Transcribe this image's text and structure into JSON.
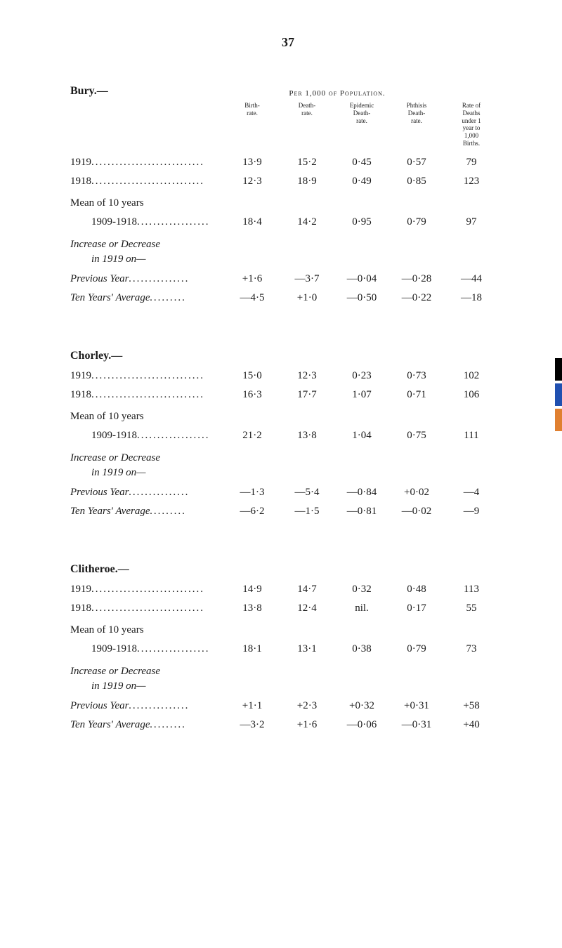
{
  "page_number": "37",
  "per_population_caption": "Per 1,000 of Population.",
  "column_headers": {
    "birth_rate": "Birth-\nrate.",
    "death_rate": "Death-\nrate.",
    "epidemic": "Epidemic\nDeath-\nrate.",
    "phthisis": "Phthisis\nDeath-\nrate.",
    "deaths_under1": "Rate of\nDeaths\nunder 1\nyear to\n1,000\nBirths."
  },
  "sections": [
    {
      "title": "Bury.—",
      "rows": [
        {
          "label": "1919",
          "dots": "............................",
          "values": [
            "13·9",
            "15·2",
            "0·45",
            "0·57",
            "79"
          ]
        },
        {
          "label": "1918",
          "dots": "............................",
          "values": [
            "12·3",
            "18·9",
            "0·49",
            "0·85",
            "123"
          ]
        }
      ],
      "mean_label": "Mean of 10 years",
      "mean_row": {
        "label": "1909-1918",
        "dots": "..................",
        "values": [
          "18·4",
          "14·2",
          "0·95",
          "0·79",
          "97"
        ]
      },
      "increase_label": "Increase or Decrease",
      "increase_sub": "in 1919 on—",
      "prev_year": {
        "label": "Previous Year",
        "dots": "...............",
        "values": [
          "+1·6",
          "—3·7",
          "—0·04",
          "—0·28",
          "—44"
        ]
      },
      "ten_year": {
        "label": "Ten Years' Average",
        "dots": ".........",
        "values": [
          "—4·5",
          "+1·0",
          "—0·50",
          "—0·22",
          "—18"
        ]
      }
    },
    {
      "title": "Chorley.—",
      "rows": [
        {
          "label": "1919",
          "dots": "............................",
          "values": [
            "15·0",
            "12·3",
            "0·23",
            "0·73",
            "102"
          ]
        },
        {
          "label": "1918",
          "dots": "............................",
          "values": [
            "16·3",
            "17·7",
            "1·07",
            "0·71",
            "106"
          ]
        }
      ],
      "mean_label": "Mean of 10 years",
      "mean_row": {
        "label": "1909-1918",
        "dots": "..................",
        "values": [
          "21·2",
          "13·8",
          "1·04",
          "0·75",
          "111"
        ]
      },
      "increase_label": "Increase or Decrease",
      "increase_sub": "in 1919 on—",
      "prev_year": {
        "label": "Previous Year",
        "dots": "...............",
        "values": [
          "—1·3",
          "—5·4",
          "—0·84",
          "+0·02",
          "—4"
        ]
      },
      "ten_year": {
        "label": "Ten Years' Average",
        "dots": ".........",
        "values": [
          "—6·2",
          "—1·5",
          "—0·81",
          "—0·02",
          "—9"
        ]
      }
    },
    {
      "title": "Clitheroe.—",
      "rows": [
        {
          "label": "1919",
          "dots": "............................",
          "values": [
            "14·9",
            "14·7",
            "0·32",
            "0·48",
            "113"
          ]
        },
        {
          "label": "1918",
          "dots": "............................",
          "values": [
            "13·8",
            "12·4",
            "nil.",
            "0·17",
            "55"
          ]
        }
      ],
      "mean_label": "Mean of 10 years",
      "mean_row": {
        "label": "1909-1918",
        "dots": "..................",
        "values": [
          "18·1",
          "13·1",
          "0·38",
          "0·79",
          "73"
        ]
      },
      "increase_label": "Increase or Decrease",
      "increase_sub": "in 1919 on—",
      "prev_year": {
        "label": "Previous Year",
        "dots": "...............",
        "values": [
          "+1·1",
          "+2·3",
          "+0·32",
          "+0·31",
          "+58"
        ]
      },
      "ten_year": {
        "label": "Ten Years' Average",
        "dots": ".........",
        "values": [
          "—3·2",
          "+1·6",
          "—0·06",
          "—0·31",
          "+40"
        ]
      }
    }
  ],
  "side_tabs": [
    {
      "color": "#000000"
    },
    {
      "color": "#2050b0"
    },
    {
      "color": "#e08030"
    }
  ]
}
